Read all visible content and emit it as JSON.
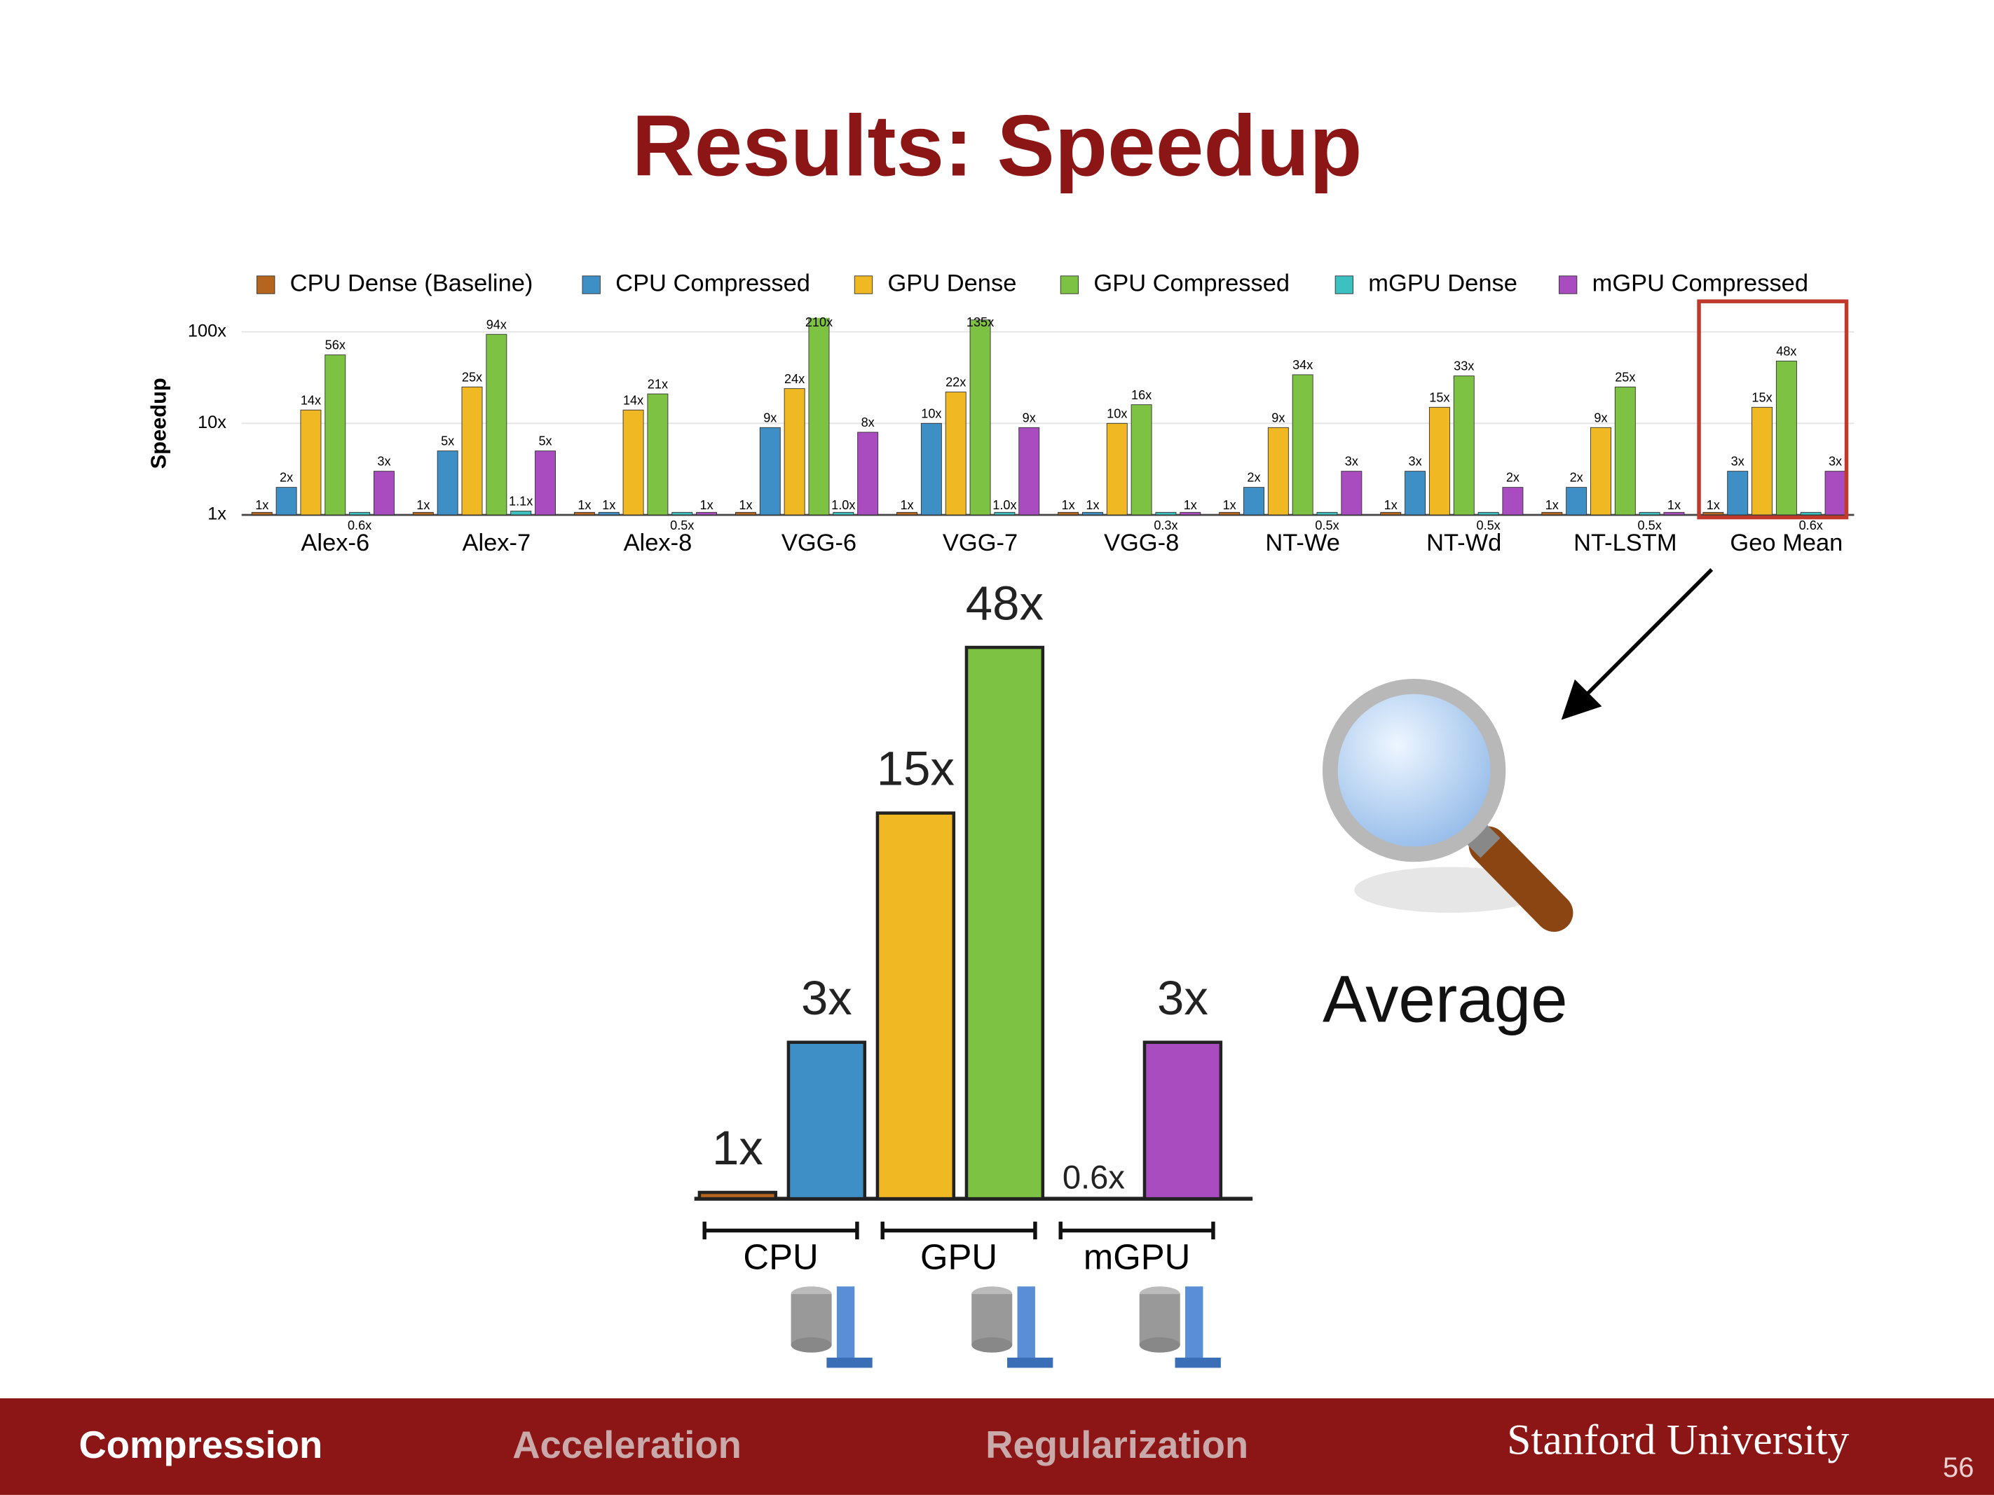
{
  "slide": {
    "title": "Results: Speedup",
    "callout": "Average",
    "footer": {
      "tabs": [
        "Compression",
        "Acceleration",
        "Regularization"
      ],
      "brand": "Stanford University",
      "page": "56"
    }
  },
  "chart_data": [
    {
      "type": "bar",
      "y_label": "Speedup",
      "log": true,
      "grid": true,
      "legend": "top",
      "categories": [
        "Alex-6",
        "Alex-7",
        "Alex-8",
        "VGG-6",
        "VGG-7",
        "VGG-8",
        "NT-We",
        "NT-Wd",
        "NT-LSTM",
        "Geo Mean"
      ],
      "ylim": [
        1,
        100
      ],
      "yticks": [
        {
          "value": 1,
          "label": "1x"
        },
        {
          "value": 10,
          "label": "10x"
        },
        {
          "value": 100,
          "label": "100x"
        }
      ],
      "series": [
        {
          "name": "CPU Dense (Baseline)",
          "color": "#b5651d",
          "values": [
            1,
            1,
            1,
            1,
            1,
            1,
            1,
            1,
            1,
            1
          ],
          "value_labels": [
            "1x",
            "1x",
            "1x",
            "1x",
            "1x",
            "1x",
            "1x",
            "1x",
            "1x",
            "1x"
          ]
        },
        {
          "name": "CPU Compressed",
          "color": "#3d8fc6",
          "values": [
            2,
            5,
            1,
            9,
            10,
            1,
            2,
            3,
            2,
            3
          ],
          "value_labels": [
            "2x",
            "5x",
            "1x",
            "9x",
            "10x",
            "1x",
            "2x",
            "3x",
            "2x",
            "3x"
          ]
        },
        {
          "name": "GPU Dense",
          "color": "#f0b823",
          "values": [
            14,
            25,
            14,
            24,
            22,
            10,
            9,
            15,
            9,
            15
          ],
          "value_labels": [
            "14x",
            "25x",
            "14x",
            "24x",
            "22x",
            "10x",
            "9x",
            "15x",
            "9x",
            "15x"
          ]
        },
        {
          "name": "GPU Compressed",
          "color": "#7dc242",
          "values": [
            56,
            94,
            21,
            210,
            135,
            16,
            34,
            33,
            25,
            48
          ],
          "value_labels": [
            "56x",
            "94x",
            "21x",
            "210x",
            "135x",
            "16x",
            "34x",
            "33x",
            "25x",
            "48x"
          ]
        },
        {
          "name": "mGPU Dense",
          "color": "#3cc0c0",
          "values": [
            0.6,
            1.1,
            0.5,
            1.0,
            1.0,
            0.3,
            0.5,
            0.5,
            0.5,
            0.6
          ],
          "value_labels": [
            "0.6x",
            "1.1x",
            "0.5x",
            "1.0x",
            "1.0x",
            "0.3x",
            "0.5x",
            "0.5x",
            "0.5x",
            "0.6x"
          ]
        },
        {
          "name": "mGPU Compressed",
          "color": "#a84cc0",
          "values": [
            3,
            5,
            1,
            8,
            9,
            1,
            3,
            2,
            1,
            3
          ],
          "value_labels": [
            "3x",
            "5x",
            "1x",
            "8x",
            "9x",
            "1x",
            "3x",
            "2x",
            "1x",
            "3x"
          ]
        }
      ]
    },
    {
      "type": "bar",
      "log": true,
      "values": [
        1,
        3,
        15,
        48,
        0.6,
        3
      ],
      "value_labels": [
        "1x",
        "3x",
        "15x",
        "48x",
        "0.6x",
        "3x"
      ],
      "colors": [
        "#b5651d",
        "#3d8fc6",
        "#f0b823",
        "#7dc242",
        "#3cc0c0",
        "#a84cc0"
      ],
      "groups": [
        "CPU",
        "GPU",
        "mGPU"
      ]
    }
  ]
}
